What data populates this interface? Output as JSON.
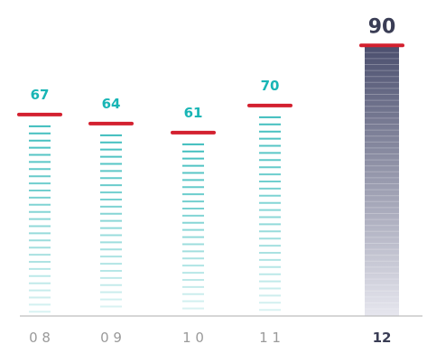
{
  "chart_data": {
    "type": "bar",
    "categories": [
      "0 8",
      "0 9",
      "1 0",
      "1 1",
      "12"
    ],
    "values": [
      67,
      64,
      61,
      70,
      90
    ],
    "value_labels": [
      "67",
      "64",
      "61",
      "70",
      "90"
    ],
    "highlight_index": 4,
    "ylim": [
      0,
      100
    ],
    "grid": false,
    "colors": {
      "bar_stripe": "#3dbdbd",
      "cap": "#d3202f",
      "highlight_dark": "#4b4f6e",
      "highlight_light": "#e6e6ee",
      "value_label": "#18b5b5",
      "highlight_label": "#3a3d55",
      "tick_label": "#9a9a9a",
      "highlight_tick": "#3a3d55",
      "axis": "#bdbdbd"
    }
  }
}
